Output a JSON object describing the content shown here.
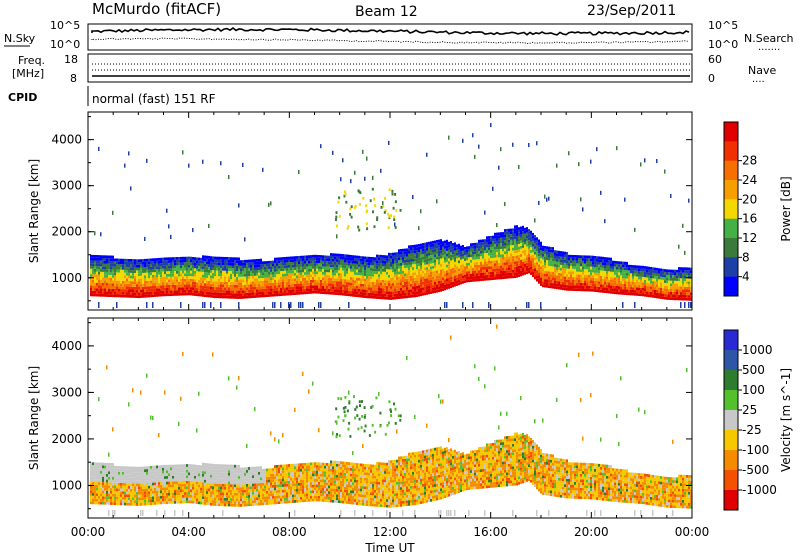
{
  "header": {
    "station": "McMurdo (fitACF)",
    "beam": "Beam 12",
    "date": "23/Sep/2011"
  },
  "scan_panel": {
    "left_label": "N.Sky",
    "left_ticks": [
      "10^5",
      "10^0"
    ],
    "right_ticks": [
      "10^5",
      "10^0"
    ],
    "right_label": "N.Search",
    "right_legend": "......."
  },
  "freq_panel": {
    "label_line1": "Freq.",
    "label_line2": "[MHz]",
    "left_ticks": [
      "18",
      "8"
    ],
    "right_ticks": [
      "60",
      "0"
    ],
    "right_label": "Nave",
    "right_legend": "...."
  },
  "cpid_panel": {
    "label": "CPID",
    "text": "normal (fast) 151 RF"
  },
  "colors": {
    "power_scale": [
      "#0000ff",
      "#1f3fa8",
      "#3a7a3a",
      "#44b144",
      "#f5d800",
      "#f5a000",
      "#f57000",
      "#f03000",
      "#e00000"
    ],
    "velocity_scale": [
      "#2a2ad4",
      "#2e55a8",
      "#2e7d2e",
      "#55c02e",
      "#c8c8c8",
      "#f5c800",
      "#f58c00",
      "#f55000",
      "#e00000"
    ]
  },
  "chart_data": [
    {
      "type": "heatmap",
      "title": "",
      "xlabel": "Time UT",
      "ylabel": "Slant Range [km]",
      "xlim": [
        0,
        24
      ],
      "ylim": [
        300,
        4600
      ],
      "x_ticks": [
        "00:00",
        "04:00",
        "08:00",
        "12:00",
        "16:00",
        "20:00",
        "00:00"
      ],
      "y_ticks": [
        1000,
        2000,
        3000,
        4000
      ],
      "colorbar_label": "Power [dB]",
      "colorbar_ticks": [
        4,
        8,
        12,
        16,
        20,
        24,
        28
      ],
      "colorbar_range": [
        0,
        30
      ],
      "echo_band_lower_km": [
        [
          0,
          600
        ],
        [
          1,
          580
        ],
        [
          2,
          560
        ],
        [
          3,
          600
        ],
        [
          4,
          620
        ],
        [
          5,
          560
        ],
        [
          6,
          540
        ],
        [
          7,
          580
        ],
        [
          8,
          620
        ],
        [
          9,
          660
        ],
        [
          10,
          620
        ],
        [
          11,
          560
        ],
        [
          12,
          520
        ],
        [
          13,
          580
        ],
        [
          14,
          700
        ],
        [
          15,
          900
        ],
        [
          16,
          950
        ],
        [
          17,
          1000
        ],
        [
          17.5,
          1100
        ],
        [
          18,
          800
        ],
        [
          19,
          720
        ],
        [
          20,
          700
        ],
        [
          21,
          640
        ],
        [
          22,
          600
        ],
        [
          23,
          520
        ],
        [
          24,
          500
        ]
      ],
      "echo_band_upper_km": [
        [
          0,
          1450
        ],
        [
          1,
          1420
        ],
        [
          2,
          1380
        ],
        [
          3,
          1400
        ],
        [
          4,
          1440
        ],
        [
          5,
          1420
        ],
        [
          6,
          1380
        ],
        [
          7,
          1350
        ],
        [
          8,
          1420
        ],
        [
          9,
          1450
        ],
        [
          10,
          1500
        ],
        [
          11,
          1400
        ],
        [
          12,
          1500
        ],
        [
          13,
          1700
        ],
        [
          14,
          1800
        ],
        [
          15,
          1650
        ],
        [
          16,
          1900
        ],
        [
          17,
          2100
        ],
        [
          17.5,
          2050
        ],
        [
          18,
          1700
        ],
        [
          19,
          1500
        ],
        [
          20,
          1450
        ],
        [
          21,
          1350
        ],
        [
          22,
          1200
        ],
        [
          23,
          1150
        ],
        [
          24,
          1200
        ]
      ]
    },
    {
      "type": "heatmap",
      "title": "",
      "xlabel": "Time UT",
      "ylabel": "Slant Range [km]",
      "xlim": [
        0,
        24
      ],
      "ylim": [
        300,
        4600
      ],
      "x_ticks": [
        "00:00",
        "04:00",
        "08:00",
        "12:00",
        "16:00",
        "20:00",
        "00:00"
      ],
      "y_ticks": [
        1000,
        2000,
        3000,
        4000
      ],
      "colorbar_label": "Velocity [m s^-1]",
      "colorbar_ticks": [
        1000,
        500,
        100,
        25,
        -25,
        -100,
        -500,
        -1000
      ],
      "colorbar_range": [
        -1000,
        1000
      ]
    }
  ]
}
